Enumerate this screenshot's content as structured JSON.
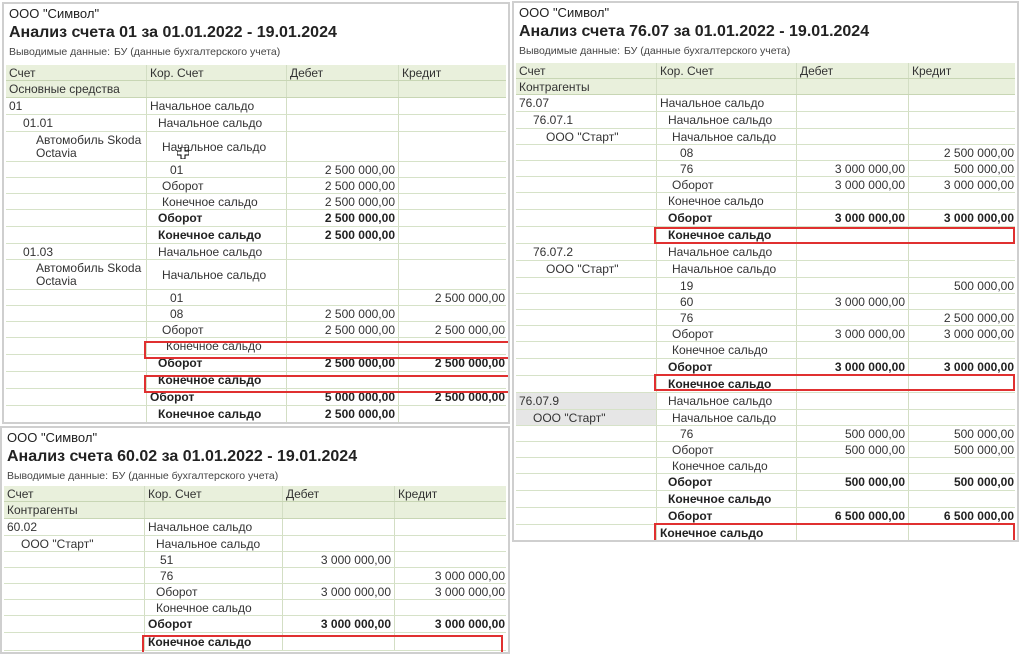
{
  "p1": {
    "org": "ООО \"Символ\"",
    "title": "Анализ счета 01 за 01.01.2022 - 19.01.2024",
    "output_label": "Выводимые данные:",
    "output_value": "БУ (данные бухгалтерского учета)",
    "headers": {
      "acc": "Счет",
      "sub": "Основные средства",
      "kor": "Кор. Счет",
      "debit": "Дебет",
      "credit": "Кредит"
    },
    "rows": [
      {
        "acc": "01",
        "kor": "Начальное сальдо",
        "debit": "",
        "credit": ""
      },
      {
        "acc": "01.01",
        "kor": "Начальное сальдо",
        "debit": "",
        "credit": ""
      },
      {
        "acc": "Автомобиль Skoda Octavia",
        "kor": "Начальное сальдо",
        "debit": "",
        "credit": ""
      },
      {
        "acc": "",
        "kor": "01",
        "debit": "2 500 000,00",
        "credit": ""
      },
      {
        "acc": "",
        "kor": "Оборот",
        "debit": "2 500 000,00",
        "credit": ""
      },
      {
        "acc": "",
        "kor": "Конечное сальдо",
        "debit": "2 500 000,00",
        "credit": ""
      },
      {
        "acc": "",
        "kor": "Оборот",
        "debit": "2 500 000,00",
        "credit": ""
      },
      {
        "acc": "",
        "kor": "Конечное сальдо",
        "debit": "2 500 000,00",
        "credit": ""
      },
      {
        "acc": "01.03",
        "kor": "Начальное сальдо",
        "debit": "",
        "credit": ""
      },
      {
        "acc": "Автомобиль Skoda Octavia",
        "kor": "Начальное сальдо",
        "debit": "",
        "credit": ""
      },
      {
        "acc": "",
        "kor": "01",
        "debit": "",
        "credit": "2 500 000,00"
      },
      {
        "acc": "",
        "kor": "08",
        "debit": "2 500 000,00",
        "credit": ""
      },
      {
        "acc": "",
        "kor": "Оборот",
        "debit": "2 500 000,00",
        "credit": "2 500 000,00"
      },
      {
        "acc": "",
        "kor": "Конечное сальдо",
        "debit": "",
        "credit": ""
      },
      {
        "acc": "",
        "kor": "Оборот",
        "debit": "2 500 000,00",
        "credit": "2 500 000,00"
      },
      {
        "acc": "",
        "kor": "Конечное сальдо",
        "debit": "",
        "credit": ""
      },
      {
        "acc": "",
        "kor": "Оборот",
        "debit": "5 000 000,00",
        "credit": "2 500 000,00"
      },
      {
        "acc": "",
        "kor": "Конечное сальдо",
        "debit": "2 500 000,00",
        "credit": ""
      }
    ]
  },
  "p2": {
    "org": "ООО \"Символ\"",
    "title": "Анализ счета 76.07 за 01.01.2022 - 19.01.2024",
    "output_label": "Выводимые данные:",
    "output_value": "БУ (данные бухгалтерского учета)",
    "headers": {
      "acc": "Счет",
      "sub": "Контрагенты",
      "kor": "Кор. Счет",
      "debit": "Дебет",
      "credit": "Кредит"
    },
    "rows": [
      {
        "acc": "76.07",
        "kor": "Начальное сальдо",
        "debit": "",
        "credit": ""
      },
      {
        "acc": "76.07.1",
        "kor": "Начальное сальдо",
        "debit": "",
        "credit": ""
      },
      {
        "acc": "ООО \"Старт\"",
        "kor": "Начальное сальдо",
        "debit": "",
        "credit": ""
      },
      {
        "acc": "",
        "kor": "08",
        "debit": "",
        "credit": "2 500 000,00"
      },
      {
        "acc": "",
        "kor": "76",
        "debit": "3 000 000,00",
        "credit": "500 000,00"
      },
      {
        "acc": "",
        "kor": "Оборот",
        "debit": "3 000 000,00",
        "credit": "3 000 000,00"
      },
      {
        "acc": "",
        "kor": "Конечное сальдо",
        "debit": "",
        "credit": ""
      },
      {
        "acc": "",
        "kor": "Оборот",
        "debit": "3 000 000,00",
        "credit": "3 000 000,00"
      },
      {
        "acc": "",
        "kor": "Конечное сальдо",
        "debit": "",
        "credit": ""
      },
      {
        "acc": "76.07.2",
        "kor": "Начальное сальдо",
        "debit": "",
        "credit": ""
      },
      {
        "acc": "ООО \"Старт\"",
        "kor": "Начальное сальдо",
        "debit": "",
        "credit": ""
      },
      {
        "acc": "",
        "kor": "19",
        "debit": "",
        "credit": "500 000,00"
      },
      {
        "acc": "",
        "kor": "60",
        "debit": "3 000 000,00",
        "credit": ""
      },
      {
        "acc": "",
        "kor": "76",
        "debit": "",
        "credit": "2 500 000,00"
      },
      {
        "acc": "",
        "kor": "Оборот",
        "debit": "3 000 000,00",
        "credit": "3 000 000,00"
      },
      {
        "acc": "",
        "kor": "Конечное сальдо",
        "debit": "",
        "credit": ""
      },
      {
        "acc": "",
        "kor": "Оборот",
        "debit": "3 000 000,00",
        "credit": "3 000 000,00"
      },
      {
        "acc": "",
        "kor": "Конечное сальдо",
        "debit": "",
        "credit": ""
      },
      {
        "acc": "76.07.9",
        "kor": "Начальное сальдо",
        "debit": "",
        "credit": ""
      },
      {
        "acc": "ООО \"Старт\"",
        "kor": "Начальное сальдо",
        "debit": "",
        "credit": ""
      },
      {
        "acc": "",
        "kor": "76",
        "debit": "500 000,00",
        "credit": "500 000,00"
      },
      {
        "acc": "",
        "kor": "Оборот",
        "debit": "500 000,00",
        "credit": "500 000,00"
      },
      {
        "acc": "",
        "kor": "Конечное сальдо",
        "debit": "",
        "credit": ""
      },
      {
        "acc": "",
        "kor": "Оборот",
        "debit": "500 000,00",
        "credit": "500 000,00"
      },
      {
        "acc": "",
        "kor": "Конечное сальдо",
        "debit": "",
        "credit": ""
      },
      {
        "acc": "",
        "kor": "Оборот",
        "debit": "6 500 000,00",
        "credit": "6 500 000,00"
      },
      {
        "acc": "",
        "kor": "Конечное сальдо",
        "debit": "",
        "credit": ""
      }
    ]
  },
  "p3": {
    "org": "ООО \"Символ\"",
    "title": "Анализ счета 60.02 за 01.01.2022 - 19.01.2024",
    "output_label": "Выводимые данные:",
    "output_value": "БУ (данные бухгалтерского учета)",
    "headers": {
      "acc": "Счет",
      "sub": "Контрагенты",
      "kor": "Кор. Счет",
      "debit": "Дебет",
      "credit": "Кредит"
    },
    "rows": [
      {
        "acc": "60.02",
        "kor": "Начальное сальдо",
        "debit": "",
        "credit": ""
      },
      {
        "acc": "ООО \"Старт\"",
        "kor": "Начальное сальдо",
        "debit": "",
        "credit": ""
      },
      {
        "acc": "",
        "kor": "51",
        "debit": "3 000 000,00",
        "credit": ""
      },
      {
        "acc": "",
        "kor": "76",
        "debit": "",
        "credit": "3 000 000,00"
      },
      {
        "acc": "",
        "kor": "Оборот",
        "debit": "3 000 000,00",
        "credit": "3 000 000,00"
      },
      {
        "acc": "",
        "kor": "Конечное сальдо",
        "debit": "",
        "credit": ""
      },
      {
        "acc": "",
        "kor": "Оборот",
        "debit": "3 000 000,00",
        "credit": "3 000 000,00"
      },
      {
        "acc": "",
        "kor": "Конечное сальдо",
        "debit": "",
        "credit": ""
      }
    ]
  },
  "colors": {
    "header_bg": "#e9f0dc",
    "grid": "#d6e2c8",
    "highlight": "#e03030"
  }
}
